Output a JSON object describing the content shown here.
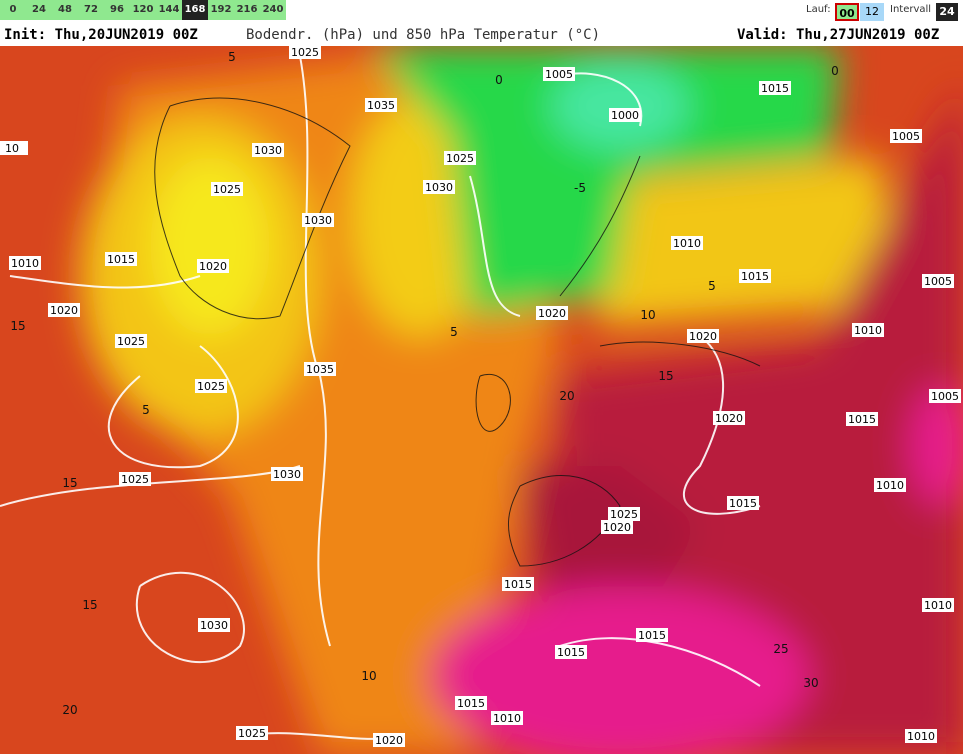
{
  "hour_buttons": [
    "0",
    "24",
    "48",
    "72",
    "96",
    "120",
    "144",
    "168",
    "192",
    "216",
    "240"
  ],
  "active_hour_button": 7,
  "run": {
    "label": "Lauf:",
    "options": [
      "00",
      "12"
    ],
    "active": 0
  },
  "interval": {
    "label": "Intervall",
    "value": "24"
  },
  "header": {
    "init": "Init: Thu,20JUN2019 00Z",
    "title": "Bodendr. (hPa) und 850 hPa Temperatur (°C)",
    "valid": "Valid: Thu,27JUN2019 00Z"
  },
  "map": {
    "isobar_labels": [
      "1025",
      "1005",
      "1015",
      "1035",
      "1000",
      "1005",
      "10",
      "1030",
      "1025",
      "1030",
      "1025",
      "1030",
      "1010",
      "1010",
      "1015",
      "1020",
      "1015",
      "1005",
      "1020",
      "1020",
      "1010",
      "1025",
      "1020",
      "1035",
      "1025",
      "1005",
      "1020",
      "1015",
      "1030",
      "1025",
      "1010",
      "1015",
      "1025",
      "1020",
      "1015",
      "1030",
      "1015",
      "1015",
      "1010",
      "1015",
      "1010",
      "1025",
      "1020",
      "1010"
    ],
    "temperature_labels": [
      "0",
      "0",
      "5",
      "-5",
      "5",
      "5",
      "5",
      "15",
      "15",
      "15",
      "10",
      "20",
      "20",
      "25",
      "30",
      "15",
      "10"
    ]
  }
}
